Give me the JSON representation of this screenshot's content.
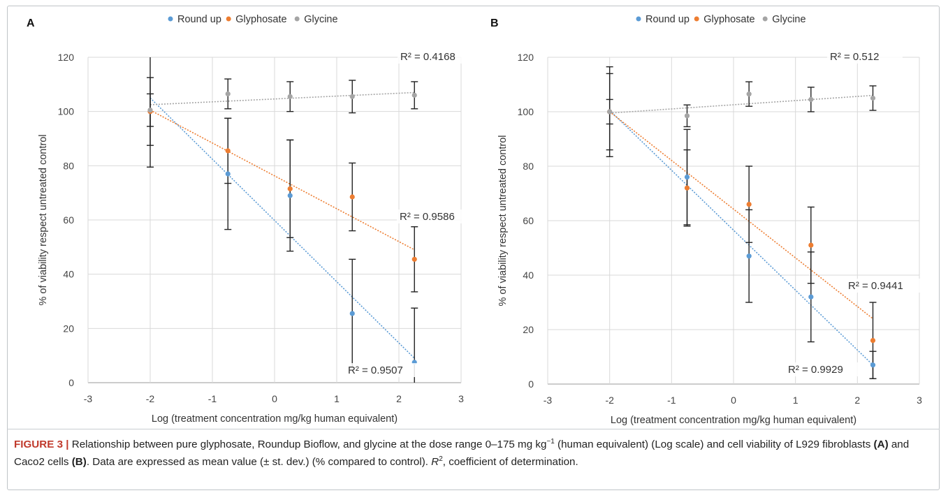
{
  "figure": {
    "caption": {
      "label": "FIGURE 3 |",
      "text1": " Relationship between pure glyphosate, Roundup Bioflow, and glycine at the dose range 0–175 mg kg",
      "sup1": "−1",
      "text2": " (human equivalent) (Log scale) and cell viability of L929 fibroblasts ",
      "boldA": "(A)",
      "text3": " and Caco2 cells ",
      "boldB": "(B)",
      "text4": ". Data are expressed as mean value (± st. dev.) (% compared to control). ",
      "r2sym": "R",
      "r2sup": "2",
      "text5": ", coefficient of determination."
    }
  },
  "chart_data": [
    {
      "type": "scatter",
      "panel": "A",
      "xlabel": "Log (treatment concentration mg/kg human equivalent)",
      "ylabel": "% of viability respect untreated control",
      "xlim": [
        -3,
        3
      ],
      "ylim": [
        0,
        120
      ],
      "xticks": [
        -3,
        -2,
        -1,
        0,
        1,
        2,
        3
      ],
      "yticks": [
        0,
        20,
        40,
        60,
        80,
        100,
        120
      ],
      "grid": true,
      "legend_position": "top-center",
      "series": [
        {
          "name": "Round up",
          "color": "#5b9bd5",
          "x": [
            -2,
            -0.75,
            0.25,
            1.25,
            2.25
          ],
          "y": [
            100,
            77,
            69,
            25.5,
            7.5
          ],
          "err": [
            12.5,
            20.5,
            20.5,
            20,
            20
          ],
          "trend": [
            [
              -2,
              105
            ],
            [
              2.25,
              9
            ]
          ],
          "r2": "R² = 0.9507"
        },
        {
          "name": "Glyphosate",
          "color": "#ed7d31",
          "x": [
            -2,
            -0.75,
            0.25,
            1.25,
            2.25
          ],
          "y": [
            100,
            85.5,
            71.5,
            68.5,
            45.5
          ],
          "err": [
            20.5,
            12,
            18,
            12.5,
            12
          ],
          "trend": [
            [
              -2,
              100.5
            ],
            [
              2.25,
              49
            ]
          ],
          "r2": "R² = 0.9586"
        },
        {
          "name": "Glycine",
          "color": "#a5a5a5",
          "x": [
            -2,
            -0.75,
            0.25,
            1.25,
            2.25
          ],
          "y": [
            100.5,
            106.5,
            105.5,
            105.5,
            106
          ],
          "err": [
            6,
            5.5,
            5.5,
            6,
            5
          ],
          "trend": [
            [
              -2,
              102.5
            ],
            [
              2.25,
              107
            ]
          ],
          "r2": "R² = 0.4168"
        }
      ]
    },
    {
      "type": "scatter",
      "panel": "B",
      "xlabel": "Log (treatment concentration mg/kg human equivalent)",
      "ylabel": "% of viability respect untreated control",
      "xlim": [
        -3,
        3
      ],
      "ylim": [
        0,
        120
      ],
      "xticks": [
        -3,
        -2,
        -1,
        0,
        1,
        2,
        3
      ],
      "yticks": [
        0,
        20,
        40,
        60,
        80,
        100,
        120
      ],
      "grid": true,
      "legend_position": "top-center",
      "series": [
        {
          "name": "Round up",
          "color": "#5b9bd5",
          "x": [
            -2,
            -0.75,
            0.25,
            1.25,
            2.25
          ],
          "y": [
            100,
            76,
            47,
            32,
            7
          ],
          "err": [
            16.5,
            17.5,
            17,
            16.5,
            5
          ],
          "trend": [
            [
              -2,
              100.5
            ],
            [
              2.25,
              7
            ]
          ],
          "r2": "R² = 0.9929"
        },
        {
          "name": "Glyphosate",
          "color": "#ed7d31",
          "x": [
            -2,
            -0.75,
            0.25,
            1.25,
            2.25
          ],
          "y": [
            100,
            72,
            66,
            51,
            16
          ],
          "err": [
            14,
            14,
            14,
            14,
            14
          ],
          "trend": [
            [
              -2,
              100
            ],
            [
              2.25,
              24
            ]
          ],
          "r2": "R² = 0.9441"
        },
        {
          "name": "Glycine",
          "color": "#a5a5a5",
          "x": [
            -2,
            -0.75,
            0.25,
            1.25,
            2.25
          ],
          "y": [
            100,
            98.5,
            106.5,
            104.5,
            105
          ],
          "err": [
            4.5,
            4,
            4.5,
            4.5,
            4.5
          ],
          "trend": [
            [
              -2,
              99.5
            ],
            [
              2.25,
              106
            ]
          ],
          "r2": "R² = 0.512"
        }
      ]
    }
  ]
}
